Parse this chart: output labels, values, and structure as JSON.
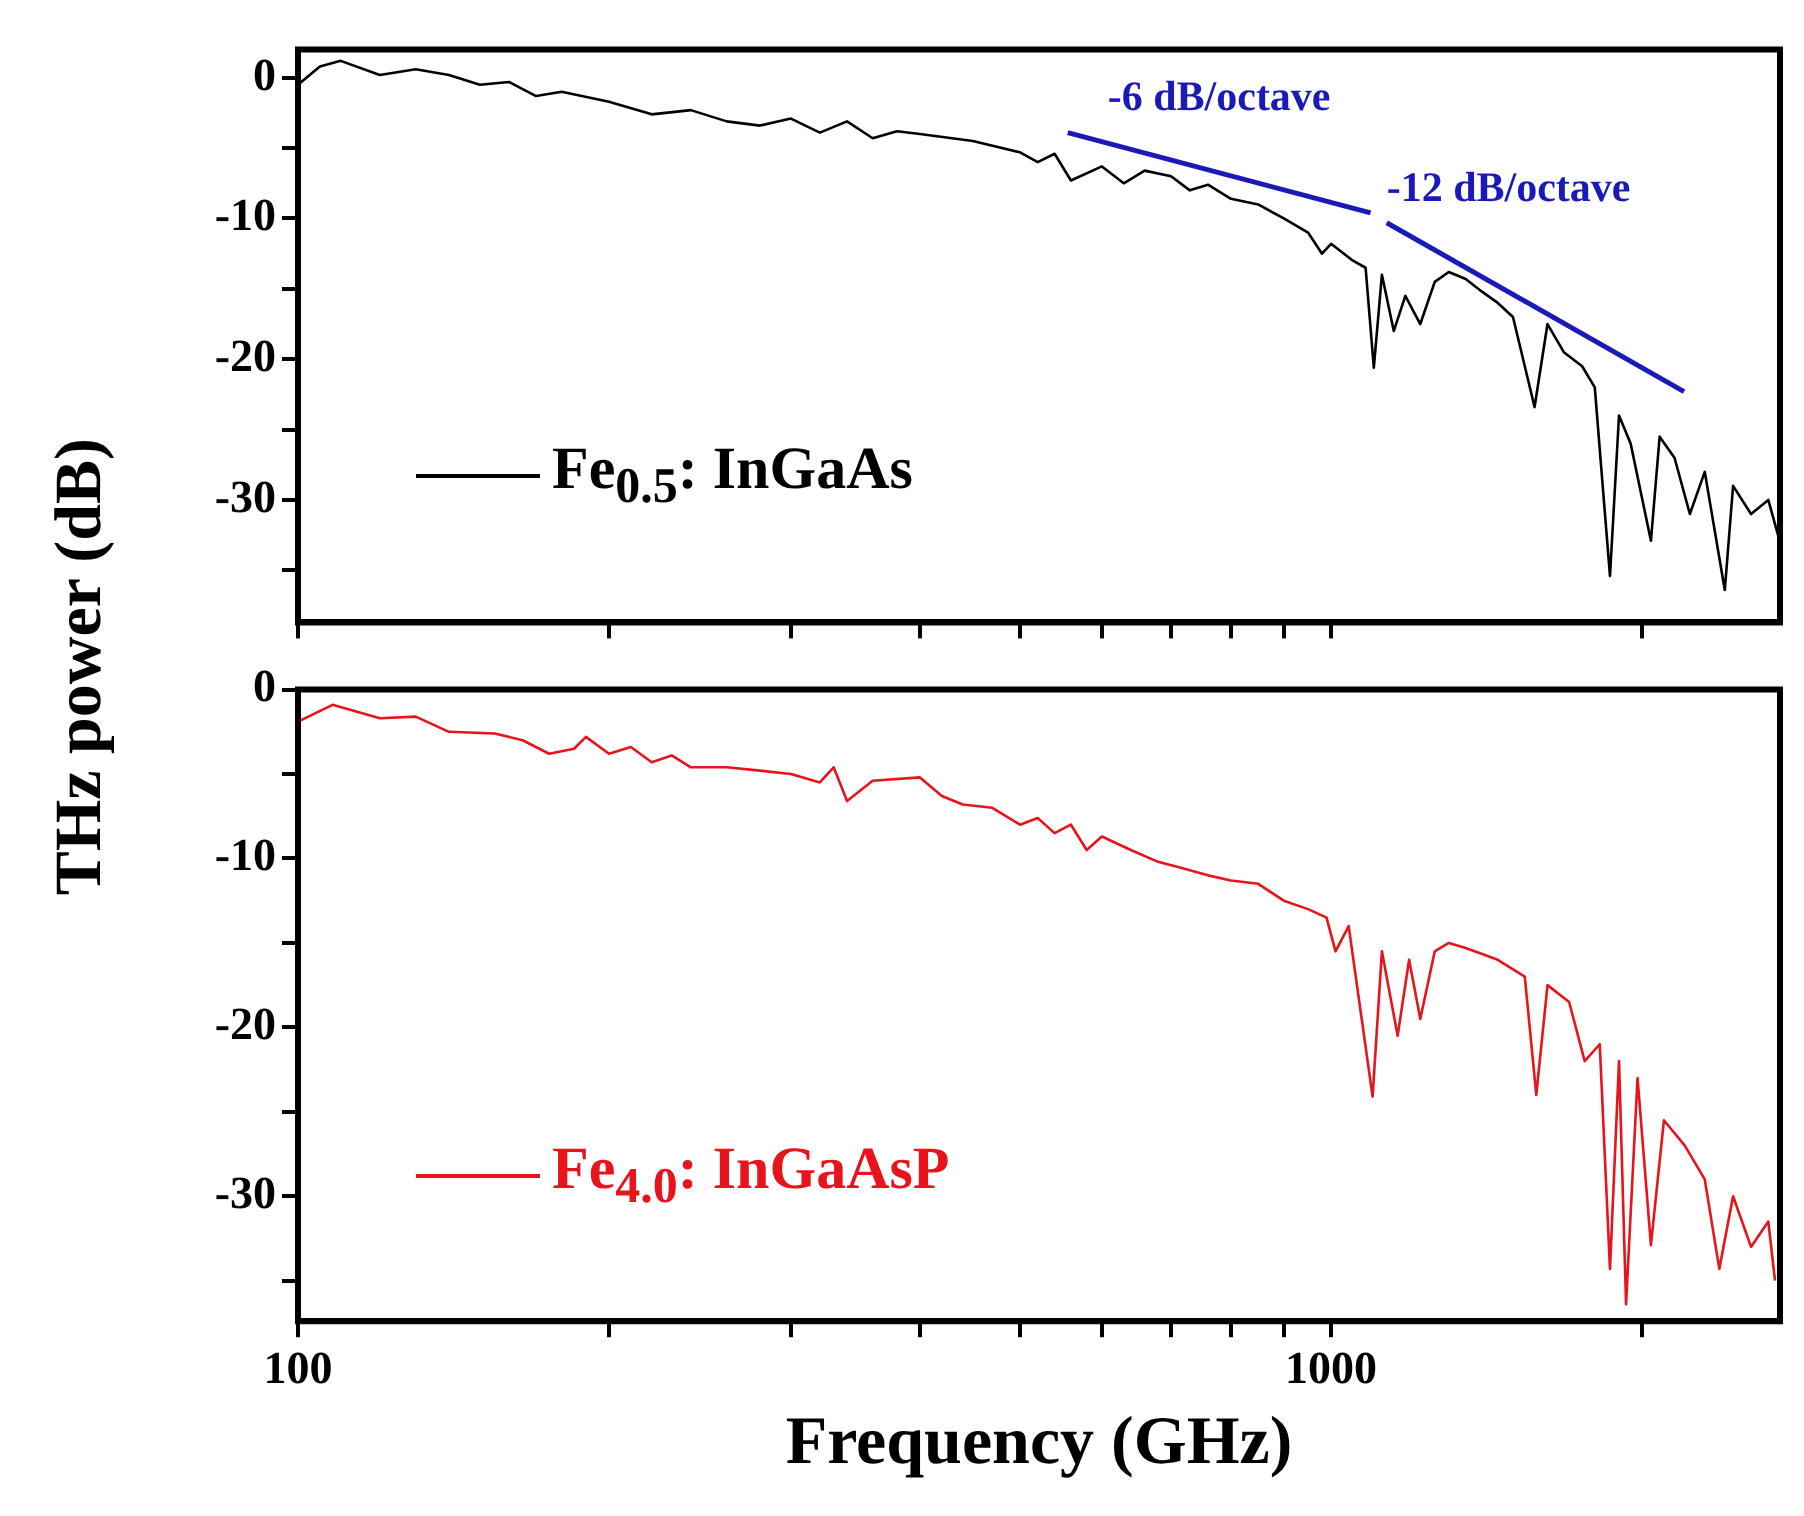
{
  "chart_data": [
    {
      "type": "line",
      "ylabel": "THz power (dB)",
      "xlim": [
        100,
        2720
      ],
      "xticks": [
        {
          "value": 100,
          "label": null
        },
        {
          "value": 200,
          "label": null
        },
        {
          "value": 300,
          "label": null
        },
        {
          "value": 400,
          "label": null
        },
        {
          "value": 500,
          "label": null
        },
        {
          "value": 600,
          "label": null
        },
        {
          "value": 700,
          "label": null
        },
        {
          "value": 800,
          "label": null
        },
        {
          "value": 900,
          "label": null
        },
        {
          "value": 1000,
          "label": null
        },
        {
          "value": 2000,
          "label": null
        }
      ],
      "ylim": [
        -38.7,
        2
      ],
      "yticks": [
        0,
        {
          "value": -5,
          "label": null
        },
        -10,
        {
          "value": -15,
          "label": null
        },
        -20,
        {
          "value": -25,
          "label": null
        },
        -30,
        {
          "value": -35,
          "label": null
        }
      ],
      "log": "x",
      "grid": false,
      "legend": "bottom left",
      "tick_labels": "y",
      "marker": "none",
      "line_style": "solid",
      "series": [
        {
          "name": "Fe$_{0.5}$: InGaAs",
          "color": "#000000",
          "x": [
            100,
            105,
            110,
            120,
            130,
            140,
            150,
            160,
            170,
            180,
            200,
            220,
            240,
            260,
            280,
            300,
            320,
            340,
            360,
            380,
            400,
            450,
            500,
            520,
            540,
            560,
            600,
            630,
            660,
            700,
            730,
            760,
            800,
            850,
            900,
            950,
            980,
            1000,
            1050,
            1080,
            1100,
            1120,
            1150,
            1180,
            1220,
            1260,
            1300,
            1350,
            1400,
            1450,
            1500,
            1574,
            1620,
            1680,
            1750,
            1800,
            1862,
            1900,
            1950,
            2040,
            2080,
            2150,
            2225,
            2300,
            2405,
            2450,
            2550,
            2650,
            2720
          ],
          "values": [
            -0.5,
            0.8,
            1.2,
            0.2,
            0.6,
            0.2,
            -0.5,
            -0.3,
            -1.3,
            -1.0,
            -1.7,
            -2.6,
            -2.3,
            -3.1,
            -3.4,
            -2.9,
            -3.9,
            -3.1,
            -4.3,
            -3.8,
            -4.0,
            -4.5,
            -5.3,
            -6.0,
            -5.4,
            -7.3,
            -6.3,
            -7.5,
            -6.6,
            -7.0,
            -8.0,
            -7.6,
            -8.6,
            -9.0,
            -10.0,
            -11.0,
            -12.5,
            -11.8,
            -13.0,
            -13.5,
            -20.6,
            -14.0,
            -18.0,
            -15.5,
            -17.5,
            -14.5,
            -13.8,
            -14.3,
            -15.2,
            -16.0,
            -17.0,
            -23.4,
            -17.5,
            -19.5,
            -20.5,
            -22.0,
            -35.4,
            -24.0,
            -26.0,
            -32.9,
            -25.5,
            -27.0,
            -31.0,
            -28.0,
            -36.4,
            -29.0,
            -31.0,
            -30.0,
            -33.0
          ]
        },
        {
          "color": "#1a1ab8",
          "x": [
            556,
            1092
          ],
          "values": [
            -3.9,
            -9.6
          ]
        },
        {
          "color": "#1a1ab8",
          "x": [
            1132,
            2196
          ],
          "values": [
            -10.3,
            -22.3
          ]
        }
      ],
      "annotations": [
        "-6 dB/octave",
        "-12 dB/octave"
      ]
    },
    {
      "type": "line",
      "xlabel": "Frequency (GHz)",
      "xlim": [
        100,
        2720
      ],
      "xticks": [
        100,
        {
          "value": 200,
          "label": null
        },
        {
          "value": 300,
          "label": null
        },
        {
          "value": 400,
          "label": null
        },
        {
          "value": 500,
          "label": null
        },
        {
          "value": 600,
          "label": null
        },
        {
          "value": 700,
          "label": null
        },
        {
          "value": 800,
          "label": null
        },
        {
          "value": 900,
          "label": null
        },
        1000,
        {
          "value": 2000,
          "label": null
        }
      ],
      "ylim": [
        -37.4,
        0
      ],
      "yticks": [
        0,
        {
          "value": -5,
          "label": null
        },
        -10,
        {
          "value": -15,
          "label": null
        },
        -20,
        {
          "value": -25,
          "label": null
        },
        -30,
        {
          "value": -35,
          "label": null
        }
      ],
      "log": "x",
      "grid": false,
      "legend": "bottom left",
      "marker": "none",
      "line_style": "solid",
      "series": [
        {
          "name": "Fe$_{4.0}$: InGaAsP",
          "color": "#e8141c",
          "x": [
            100,
            108,
            120,
            130,
            140,
            155,
            165,
            175,
            185,
            190,
            200,
            210,
            220,
            230,
            240,
            260,
            280,
            300,
            320,
            330,
            340,
            360,
            400,
            420,
            440,
            470,
            500,
            520,
            540,
            560,
            580,
            600,
            640,
            680,
            720,
            760,
            800,
            850,
            900,
            950,
            990,
            1010,
            1040,
            1097,
            1120,
            1160,
            1190,
            1220,
            1260,
            1300,
            1350,
            1450,
            1540,
            1580,
            1620,
            1700,
            1760,
            1820,
            1862,
            1900,
            1930,
            1980,
            2040,
            2100,
            2200,
            2300,
            2376,
            2450,
            2550,
            2650,
            2690
          ],
          "values": [
            -1.9,
            -0.9,
            -1.7,
            -1.6,
            -2.5,
            -2.6,
            -3.0,
            -3.8,
            -3.5,
            -2.8,
            -3.8,
            -3.4,
            -4.3,
            -3.9,
            -4.6,
            -4.6,
            -4.8,
            -5.0,
            -5.5,
            -4.6,
            -6.6,
            -5.4,
            -5.2,
            -6.3,
            -6.8,
            -7.0,
            -8.0,
            -7.6,
            -8.5,
            -8.0,
            -9.5,
            -8.7,
            -9.5,
            -10.2,
            -10.6,
            -11.0,
            -11.3,
            -11.5,
            -12.5,
            -13.0,
            -13.5,
            -15.5,
            -14.0,
            -24.1,
            -15.5,
            -20.5,
            -16.0,
            -19.5,
            -15.5,
            -15.0,
            -15.3,
            -16.0,
            -17.0,
            -24.0,
            -17.5,
            -18.5,
            -22.0,
            -21.0,
            -34.3,
            -22.0,
            -36.4,
            -23.0,
            -32.9,
            -25.5,
            -27.0,
            -29.0,
            -34.3,
            -30.0,
            -33.0,
            -31.5,
            -35.0
          ]
        }
      ]
    }
  ]
}
